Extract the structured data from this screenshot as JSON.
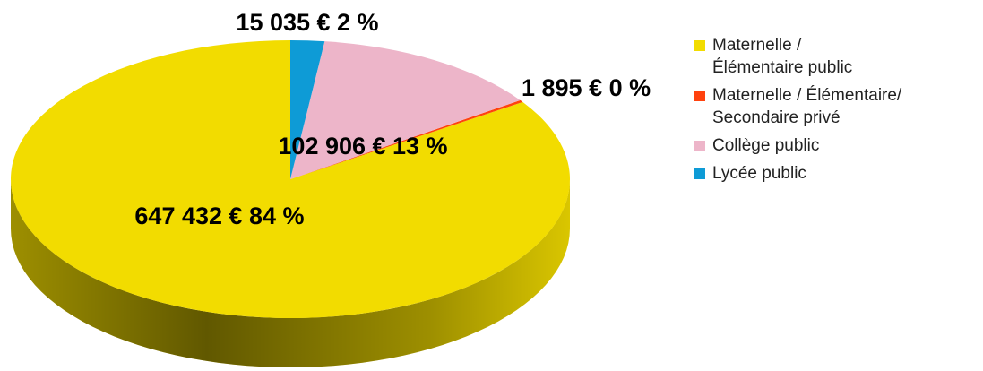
{
  "chart_data": {
    "type": "pie",
    "categories": [
      "Maternelle / Élémentaire public",
      "Maternelle / Élémentaire/ Secondaire privé",
      "Collège public",
      "Lycée public"
    ],
    "values": [
      647432,
      1895,
      102906,
      15035
    ],
    "value_labels": [
      "647 432 € 84 %",
      "1 895 € 0 %",
      "102 906 € 13 %",
      "15 035 € 2 %"
    ],
    "colors": [
      "#f2dc00",
      "#ff420e",
      "#edb5c9",
      "#0e9bd6"
    ],
    "legend": "right"
  }
}
